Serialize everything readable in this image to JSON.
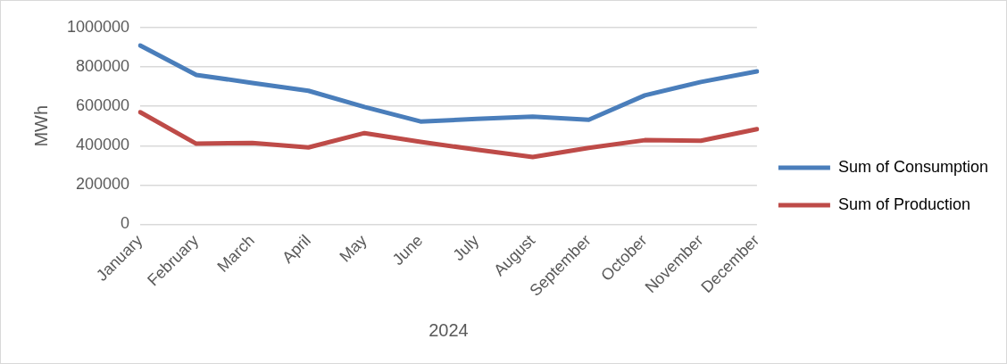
{
  "chart_data": {
    "type": "line",
    "xlabel": "2024",
    "ylabel": "MWh",
    "categories": [
      "January",
      "February",
      "March",
      "April",
      "May",
      "June",
      "July",
      "August",
      "September",
      "October",
      "November",
      "December"
    ],
    "series": [
      {
        "name": "Sum of Consumption",
        "color": "#4a7ebb",
        "values": [
          909000,
          760000,
          719000,
          679000,
          597000,
          523000,
          536000,
          548000,
          532000,
          656000,
          724000,
          778000
        ]
      },
      {
        "name": "Sum of Production",
        "color": "#be4b48",
        "values": [
          570000,
          410000,
          414000,
          391000,
          464000,
          419000,
          380000,
          342000,
          389000,
          428000,
          425000,
          484000
        ]
      }
    ],
    "ylim": [
      0,
      1000000
    ],
    "yticks": [
      0,
      200000,
      400000,
      600000,
      800000,
      1000000
    ],
    "grid": "y",
    "legend": "right",
    "marker": "none",
    "line_style": "solid"
  }
}
